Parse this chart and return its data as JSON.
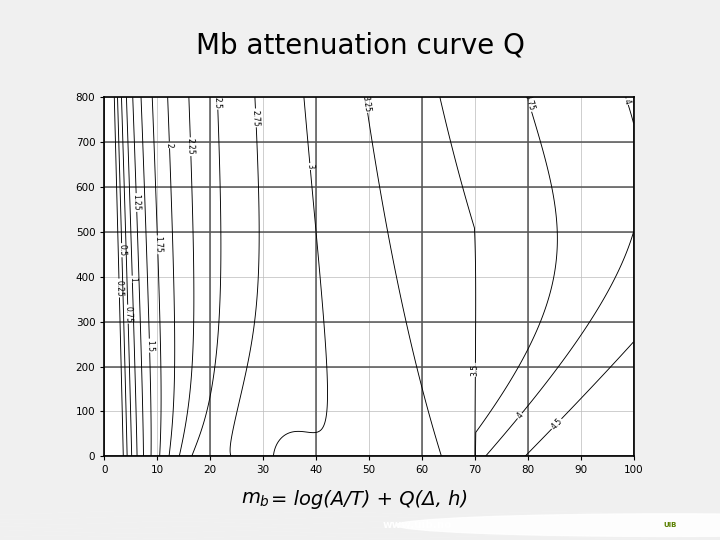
{
  "title": "Mb attenuation curve Q",
  "formula_text": "= log(A/T) + Q(Δ, h)",
  "xlim": [
    0,
    100
  ],
  "ylim": [
    0,
    800
  ],
  "xticks": [
    0,
    10,
    20,
    30,
    40,
    50,
    60,
    70,
    80,
    90,
    100
  ],
  "yticks": [
    0,
    100,
    200,
    300,
    400,
    500,
    600,
    700,
    800
  ],
  "contour_levels": [
    0.25,
    0.5,
    0.75,
    1.0,
    1.25,
    1.5,
    1.75,
    2.0,
    2.25,
    2.5,
    2.75,
    3.0,
    3.25,
    3.5,
    3.75,
    4.0,
    4.5
  ],
  "bg_color": "#f0f0f0",
  "plot_bg": "#ffffff",
  "title_fontsize": 20,
  "formula_fontsize": 14,
  "grid_color": "#bbbbbb",
  "thick_grid_color": "#555555",
  "contour_color": "black",
  "green_bar_color": "#7ab827",
  "green_bar_dark": "#5a9010",
  "uib_text_color": "#ffffff",
  "thick_x": [
    0,
    20,
    40,
    60,
    80,
    100
  ],
  "thick_y": [
    0,
    200,
    300,
    500,
    600,
    700
  ]
}
